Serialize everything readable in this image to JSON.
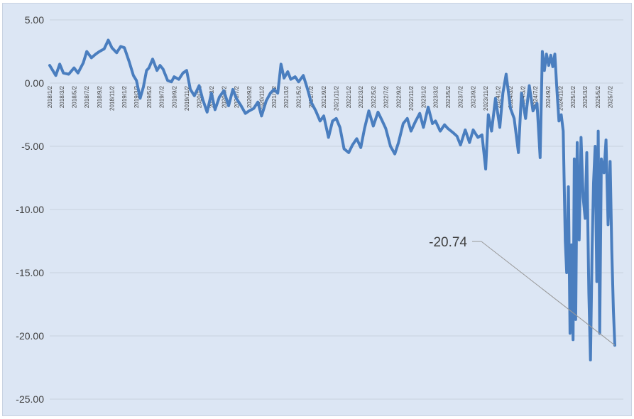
{
  "chart_data": {
    "type": "line",
    "title": "",
    "xlabel": "",
    "ylabel": "",
    "ylim": [
      -25,
      5
    ],
    "yticks": [
      5,
      0,
      -5,
      -10,
      -15,
      -20,
      -25
    ],
    "ytick_labels": [
      "5.00",
      "0.00",
      "-5.00",
      "-10.00",
      "-15.00",
      "-20.00",
      "-25.00"
    ],
    "xtick_labels": [
      "2018/1/2",
      "2018/3/2",
      "2018/5/2",
      "2018/7/2",
      "2018/9/2",
      "2018/11/2",
      "2019/1/2",
      "2019/3/2",
      "2019/5/2",
      "2019/7/2",
      "2019/9/2",
      "2019/11/2",
      "2020/1/2",
      "2020/3/2",
      "2020/5/2",
      "2020/7/2",
      "2020/9/2",
      "2020/11/2",
      "2021/1/2",
      "2021/3/2",
      "2021/5/2",
      "2021/7/2",
      "2021/9/2",
      "2021/11/2",
      "2022/1/2",
      "2022/3/2",
      "2022/5/2",
      "2022/7/2",
      "2022/9/2",
      "2022/11/2",
      "2023/1/2",
      "2023/3/2",
      "2023/5/2",
      "2023/7/2",
      "2023/9/2",
      "2023/11/2",
      "2024/1/2",
      "2024/3/2",
      "2024/5/2",
      "2024/7/2",
      "2024/9/2",
      "2024/11/2",
      "2025/1/2",
      "2025/3/2",
      "2025/5/2",
      "2025/7/2"
    ],
    "grid": true,
    "color": "#4a7ebf",
    "series": [
      {
        "name": "",
        "points": [
          [
            "2018/1/2",
            1.4
          ],
          [
            "2018/2/1",
            0.6
          ],
          [
            "2018/2/20",
            1.5
          ],
          [
            "2018/3/10",
            0.8
          ],
          [
            "2018/4/5",
            0.7
          ],
          [
            "2018/5/1",
            1.2
          ],
          [
            "2018/5/20",
            0.8
          ],
          [
            "2018/6/15",
            1.6
          ],
          [
            "2018/7/2",
            2.5
          ],
          [
            "2018/7/25",
            2.0
          ],
          [
            "2018/8/15",
            2.3
          ],
          [
            "2018/9/2",
            2.5
          ],
          [
            "2018/9/25",
            2.7
          ],
          [
            "2018/10/15",
            3.4
          ],
          [
            "2018/11/2",
            2.8
          ],
          [
            "2018/11/25",
            2.4
          ],
          [
            "2018/12/15",
            2.9
          ],
          [
            "2019/1/2",
            2.8
          ],
          [
            "2019/1/25",
            1.7
          ],
          [
            "2019/2/15",
            0.6
          ],
          [
            "2019/3/2",
            0.2
          ],
          [
            "2019/3/20",
            -1.2
          ],
          [
            "2019/4/5",
            -0.3
          ],
          [
            "2019/4/20",
            1.0
          ],
          [
            "2019/5/2",
            1.2
          ],
          [
            "2019/5/20",
            1.9
          ],
          [
            "2019/6/10",
            1.0
          ],
          [
            "2019/6/25",
            1.4
          ],
          [
            "2019/7/10",
            1.1
          ],
          [
            "2019/8/1",
            0.2
          ],
          [
            "2019/8/20",
            0.1
          ],
          [
            "2019/9/2",
            0.5
          ],
          [
            "2019/9/25",
            0.3
          ],
          [
            "2019/10/15",
            0.8
          ],
          [
            "2019/11/2",
            1.0
          ],
          [
            "2019/11/20",
            -0.5
          ],
          [
            "2019/12/10",
            -1.0
          ],
          [
            "2020/1/2",
            -0.2
          ],
          [
            "2020/1/20",
            -1.3
          ],
          [
            "2020/2/10",
            -2.3
          ],
          [
            "2020/3/2",
            -0.8
          ],
          [
            "2020/3/20",
            -2.1
          ],
          [
            "2020/4/10",
            -1.1
          ],
          [
            "2020/5/2",
            -0.6
          ],
          [
            "2020/5/25",
            -1.8
          ],
          [
            "2020/6/15",
            -0.5
          ],
          [
            "2020/7/2",
            -1.2
          ],
          [
            "2020/7/25",
            -1.8
          ],
          [
            "2020/8/15",
            -2.4
          ],
          [
            "2020/9/2",
            -2.2
          ],
          [
            "2020/9/25",
            -2.0
          ],
          [
            "2020/10/15",
            -1.5
          ],
          [
            "2020/11/2",
            -2.6
          ],
          [
            "2020/11/25",
            -1.4
          ],
          [
            "2020/12/15",
            -0.8
          ],
          [
            "2021/1/2",
            -0.5
          ],
          [
            "2021/1/20",
            -0.8
          ],
          [
            "2021/2/5",
            1.5
          ],
          [
            "2021/2/20",
            0.4
          ],
          [
            "2021/3/10",
            0.9
          ],
          [
            "2021/3/25",
            0.3
          ],
          [
            "2021/4/15",
            0.5
          ],
          [
            "2021/5/2",
            0.1
          ],
          [
            "2021/5/25",
            0.6
          ],
          [
            "2021/6/15",
            -0.5
          ],
          [
            "2021/7/2",
            -1.5
          ],
          [
            "2021/7/25",
            -2.2
          ],
          [
            "2021/8/15",
            -3.0
          ],
          [
            "2021/9/2",
            -2.6
          ],
          [
            "2021/9/25",
            -4.3
          ],
          [
            "2021/10/15",
            -3.0
          ],
          [
            "2021/11/2",
            -2.8
          ],
          [
            "2021/11/20",
            -3.5
          ],
          [
            "2021/12/10",
            -5.2
          ],
          [
            "2022/1/2",
            -5.5
          ],
          [
            "2022/1/20",
            -4.9
          ],
          [
            "2022/2/10",
            -4.4
          ],
          [
            "2022/3/2",
            -5.1
          ],
          [
            "2022/3/20",
            -3.6
          ],
          [
            "2022/4/10",
            -2.2
          ],
          [
            "2022/5/2",
            -3.4
          ],
          [
            "2022/5/25",
            -2.3
          ],
          [
            "2022/6/15",
            -3.0
          ],
          [
            "2022/7/2",
            -3.6
          ],
          [
            "2022/7/25",
            -5.0
          ],
          [
            "2022/8/15",
            -5.6
          ],
          [
            "2022/9/2",
            -4.7
          ],
          [
            "2022/9/25",
            -3.2
          ],
          [
            "2022/10/15",
            -2.8
          ],
          [
            "2022/11/2",
            -3.8
          ],
          [
            "2022/11/25",
            -3.0
          ],
          [
            "2022/12/15",
            -2.4
          ],
          [
            "2023/1/2",
            -3.5
          ],
          [
            "2023/1/25",
            -1.9
          ],
          [
            "2023/2/15",
            -3.2
          ],
          [
            "2023/3/2",
            -3.0
          ],
          [
            "2023/3/25",
            -3.8
          ],
          [
            "2023/4/15",
            -3.3
          ],
          [
            "2023/5/2",
            -3.6
          ],
          [
            "2023/5/25",
            -3.9
          ],
          [
            "2023/6/15",
            -4.2
          ],
          [
            "2023/7/2",
            -4.9
          ],
          [
            "2023/7/25",
            -3.7
          ],
          [
            "2023/8/15",
            -4.7
          ],
          [
            "2023/9/2",
            -3.7
          ],
          [
            "2023/9/25",
            -4.3
          ],
          [
            "2023/10/15",
            -4.1
          ],
          [
            "2023/11/2",
            -6.8
          ],
          [
            "2023/11/15",
            -2.5
          ],
          [
            "2023/12/1",
            -3.8
          ],
          [
            "2023/12/20",
            -1.2
          ],
          [
            "2024/1/10",
            -3.5
          ],
          [
            "2024/1/25",
            -0.8
          ],
          [
            "2024/2/10",
            0.7
          ],
          [
            "2024/3/2",
            -2.0
          ],
          [
            "2024/3/20",
            -2.8
          ],
          [
            "2024/4/10",
            -5.5
          ],
          [
            "2024/4/25",
            -0.8
          ],
          [
            "2024/5/15",
            -2.8
          ],
          [
            "2024/6/2",
            -0.2
          ],
          [
            "2024/6/20",
            -2.2
          ],
          [
            "2024/7/10",
            -1.6
          ],
          [
            "2024/7/25",
            -5.9
          ],
          [
            "2024/8/5",
            2.5
          ],
          [
            "2024/8/15",
            1.0
          ],
          [
            "2024/8/25",
            2.3
          ],
          [
            "2024/9/5",
            1.4
          ],
          [
            "2024/9/15",
            2.2
          ],
          [
            "2024/9/25",
            1.3
          ],
          [
            "2024/10/5",
            2.3
          ],
          [
            "2024/10/15",
            -0.5
          ],
          [
            "2024/10/25",
            -3.0
          ],
          [
            "2024/11/5",
            -2.5
          ],
          [
            "2024/11/15",
            -3.8
          ],
          [
            "2024/11/25",
            -12.5
          ],
          [
            "2024/12/2",
            -15.0
          ],
          [
            "2024/12/10",
            -8.2
          ],
          [
            "2024/12/18",
            -19.8
          ],
          [
            "2024/12/25",
            -12.8
          ],
          [
            "2025/1/2",
            -20.3
          ],
          [
            "2025/1/8",
            -6.0
          ],
          [
            "2025/1/15",
            -18.7
          ],
          [
            "2025/1/22",
            -4.7
          ],
          [
            "2025/2/1",
            -12.4
          ],
          [
            "2025/2/10",
            -4.3
          ],
          [
            "2025/2/20",
            -9.0
          ],
          [
            "2025/3/2",
            -10.7
          ],
          [
            "2025/3/10",
            -5.5
          ],
          [
            "2025/3/20",
            -16.6
          ],
          [
            "2025/3/28",
            -21.9
          ],
          [
            "2025/4/5",
            -13.2
          ],
          [
            "2025/4/12",
            -7.9
          ],
          [
            "2025/4/20",
            -5.0
          ],
          [
            "2025/4/28",
            -15.7
          ],
          [
            "2025/5/5",
            -3.8
          ],
          [
            "2025/5/12",
            -19.8
          ],
          [
            "2025/5/20",
            -6.0
          ],
          [
            "2025/6/2",
            -7.1
          ],
          [
            "2025/6/12",
            -4.5
          ],
          [
            "2025/6/22",
            -11.2
          ],
          [
            "2025/7/2",
            -6.2
          ],
          [
            "2025/7/10",
            -13.2
          ],
          [
            "2025/7/18",
            -18.0
          ],
          [
            "2025/7/25",
            -20.74
          ]
        ]
      }
    ],
    "annotation": {
      "text": "-20.74",
      "x": "2025/7/25",
      "y": -20.74
    }
  }
}
